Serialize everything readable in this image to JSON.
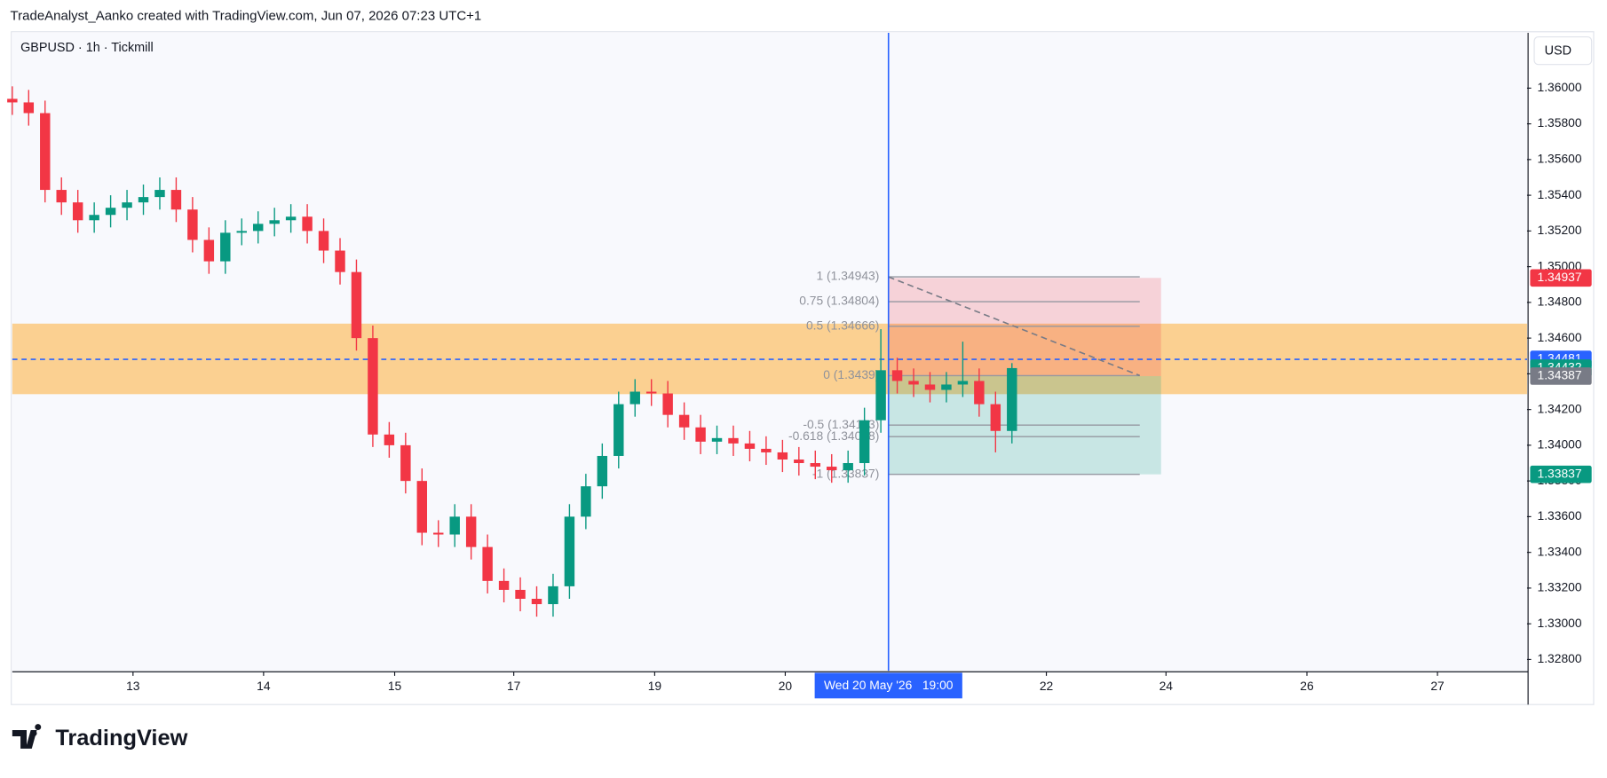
{
  "header": "TradeAnalyst_Aanko created with TradingView.com, Jun 07, 2026 07:23 UTC+1",
  "footer_logo": "TradingView",
  "currency_button": "USD",
  "chart_data": {
    "type": "candlestick",
    "title": "GBPUSD · 1h · Tickmill",
    "up_color": "#089981",
    "down_color": "#f23645",
    "grid": false,
    "x": [
      0,
      3,
      6,
      9,
      12,
      15,
      18,
      21,
      24,
      27,
      30,
      33,
      36,
      39,
      42,
      45,
      48,
      51,
      54,
      57,
      60,
      63,
      66,
      69,
      72,
      75,
      78,
      81,
      84,
      87,
      90,
      93,
      96,
      99,
      102,
      105,
      108,
      111,
      114,
      117,
      120,
      123,
      126,
      129,
      132,
      135,
      138,
      141,
      144,
      147,
      150,
      153,
      156,
      159,
      162,
      165,
      168,
      171,
      174,
      177,
      180,
      183
    ],
    "open": [
      1.3594,
      1.3592,
      1.3586,
      1.3543,
      1.3536,
      1.3526,
      1.3529,
      1.3533,
      1.3536,
      1.3539,
      1.3543,
      1.3532,
      1.3515,
      1.3503,
      1.3519,
      1.352,
      1.3524,
      1.3526,
      1.3528,
      1.352,
      1.3509,
      1.3497,
      1.346,
      1.3406,
      1.34,
      1.338,
      1.3351,
      1.335,
      1.336,
      1.3343,
      1.3324,
      1.3319,
      1.3314,
      1.3311,
      1.3321,
      1.336,
      1.3377,
      1.3394,
      1.3423,
      1.343,
      1.3429,
      1.3417,
      1.341,
      1.3402,
      1.3404,
      1.3401,
      1.3398,
      1.3396,
      1.3392,
      1.339,
      1.3388,
      1.3386,
      1.339,
      1.3414,
      1.3442,
      1.3436,
      1.3434,
      1.3431,
      1.3434,
      1.3436,
      1.3423,
      1.3408
    ],
    "high": [
      1.3601,
      1.3599,
      1.3593,
      1.355,
      1.3543,
      1.3536,
      1.354,
      1.3543,
      1.3546,
      1.355,
      1.355,
      1.3539,
      1.3522,
      1.3526,
      1.3527,
      1.3531,
      1.3533,
      1.3535,
      1.3535,
      1.3527,
      1.3516,
      1.3504,
      1.3467,
      1.3413,
      1.3407,
      1.3387,
      1.3358,
      1.3367,
      1.3367,
      1.335,
      1.3331,
      1.3326,
      1.3321,
      1.3328,
      1.3367,
      1.3384,
      1.3401,
      1.343,
      1.3437,
      1.3437,
      1.3436,
      1.3424,
      1.3417,
      1.3411,
      1.3411,
      1.3408,
      1.3405,
      1.3403,
      1.3399,
      1.3397,
      1.3395,
      1.3397,
      1.3421,
      1.3465,
      1.3449,
      1.3443,
      1.3441,
      1.3441,
      1.3458,
      1.3443,
      1.343,
      1.3446
    ],
    "low": [
      1.3585,
      1.3579,
      1.3536,
      1.3529,
      1.3519,
      1.3519,
      1.3522,
      1.3526,
      1.3529,
      1.3532,
      1.3525,
      1.3508,
      1.3496,
      1.3496,
      1.3512,
      1.3513,
      1.3517,
      1.3519,
      1.3513,
      1.3502,
      1.349,
      1.3453,
      1.3399,
      1.3393,
      1.3373,
      1.3344,
      1.3343,
      1.3343,
      1.3336,
      1.3317,
      1.3312,
      1.3307,
      1.3304,
      1.3304,
      1.3314,
      1.3353,
      1.337,
      1.3387,
      1.3416,
      1.3422,
      1.341,
      1.3403,
      1.3395,
      1.3395,
      1.3394,
      1.3391,
      1.3389,
      1.3385,
      1.3383,
      1.3381,
      1.3379,
      1.3379,
      1.3383,
      1.3407,
      1.3429,
      1.3427,
      1.3424,
      1.3424,
      1.3427,
      1.3416,
      1.3396,
      1.3401
    ],
    "close": [
      1.3592,
      1.3586,
      1.3543,
      1.3536,
      1.3526,
      1.3529,
      1.3533,
      1.3536,
      1.3539,
      1.3543,
      1.3532,
      1.3515,
      1.3503,
      1.3519,
      1.352,
      1.3524,
      1.3526,
      1.3528,
      1.352,
      1.3509,
      1.3497,
      1.346,
      1.3406,
      1.34,
      1.338,
      1.3351,
      1.335,
      1.336,
      1.3343,
      1.3324,
      1.3319,
      1.3314,
      1.3311,
      1.3321,
      1.336,
      1.3377,
      1.3394,
      1.3423,
      1.343,
      1.3429,
      1.3417,
      1.341,
      1.3402,
      1.3404,
      1.3401,
      1.3398,
      1.3396,
      1.3392,
      1.339,
      1.3388,
      1.3386,
      1.339,
      1.3414,
      1.3442,
      1.3436,
      1.3434,
      1.3431,
      1.3434,
      1.3436,
      1.3423,
      1.3408,
      1.34432
    ],
    "xlim": [
      0,
      277.3
    ],
    "xticks": [
      {
        "value": 22.1,
        "label": "13"
      },
      {
        "value": 46,
        "label": "14"
      },
      {
        "value": 70,
        "label": "15"
      },
      {
        "value": 91.8,
        "label": "17"
      },
      {
        "value": 117.6,
        "label": "19"
      },
      {
        "value": 141.5,
        "label": "20"
      },
      {
        "value": 189.3,
        "label": "22"
      },
      {
        "value": 211.2,
        "label": "24"
      },
      {
        "value": 237,
        "label": "26"
      },
      {
        "value": 260.9,
        "label": "27"
      }
    ],
    "ylim": [
      1.32737,
      1.3631
    ],
    "yticks": [
      {
        "value": 1.36,
        "label": "1.36000"
      },
      {
        "value": 1.358,
        "label": "1.35800"
      },
      {
        "value": 1.356,
        "label": "1.35600"
      },
      {
        "value": 1.354,
        "label": "1.35400"
      },
      {
        "value": 1.352,
        "label": "1.35200"
      },
      {
        "value": 1.35,
        "label": "1.35000"
      },
      {
        "value": 1.348,
        "label": "1.34800"
      },
      {
        "value": 1.346,
        "label": "1.34600"
      },
      {
        "value": 1.344,
        "label": "1.34400"
      },
      {
        "value": 1.342,
        "label": "1.34200"
      },
      {
        "value": 1.34,
        "label": "1.34000"
      },
      {
        "value": 1.338,
        "label": "1.33800"
      },
      {
        "value": 1.336,
        "label": "1.33600"
      },
      {
        "value": 1.334,
        "label": "1.33400"
      },
      {
        "value": 1.332,
        "label": "1.33200"
      },
      {
        "value": 1.33,
        "label": "1.33000"
      },
      {
        "value": 1.328,
        "label": "1.32800"
      }
    ],
    "zone": {
      "range": [
        1.34286,
        1.34681
      ],
      "color": "#fbc97e"
    },
    "dashed_line": {
      "value": 1.34481,
      "color": "#2962ff"
    },
    "crosshair": {
      "x": 160.4,
      "label": "Wed 20 May '26   19:00",
      "color": "#2962ff"
    },
    "position": {
      "x": [
        160.4,
        210.3
      ],
      "stop": 1.34937,
      "entry": 1.34387,
      "target": 1.33837
    },
    "fib": {
      "x": [
        160.4,
        206.4
      ],
      "levels": [
        {
          "value": 1.34943,
          "label": "1 (1.34943)"
        },
        {
          "value": 1.34804,
          "label": "0.75 (1.34804)"
        },
        {
          "value": 1.34666,
          "label": "0.5 (1.34666)"
        },
        {
          "value": 1.3439,
          "label": "0 (1.3439)"
        },
        {
          "value": 1.34113,
          "label": "-0.5 (1.34113)"
        },
        {
          "value": 1.34048,
          "label": "-0.618 (1.34048)"
        },
        {
          "value": 1.33837,
          "label": "-1 (1.33837)"
        }
      ]
    },
    "price_badges": [
      {
        "value": 1.34937,
        "color": "#f23645"
      },
      {
        "value": 1.34481,
        "color": "#2962ff"
      },
      {
        "value": 1.34432,
        "color": "#089981"
      },
      {
        "value": 1.34387,
        "color": "#787b86"
      },
      {
        "value": 1.33837,
        "color": "#089981"
      }
    ]
  }
}
